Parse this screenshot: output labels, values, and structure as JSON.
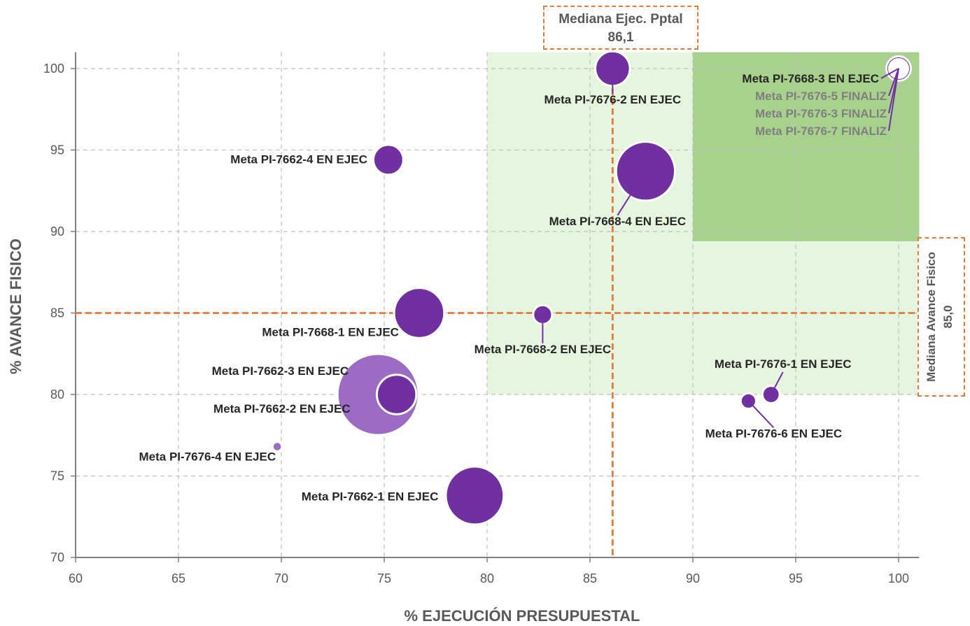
{
  "chart_data": {
    "type": "bubble",
    "xlabel": "% EJECUCIÓN PRESUPUESTAL",
    "ylabel": "% AVANCE FISICO",
    "xlim": [
      60,
      101
    ],
    "ylim": [
      70,
      101
    ],
    "xticks": [
      "60",
      "65",
      "70",
      "75",
      "80",
      "85",
      "90",
      "95",
      "100"
    ],
    "yticks": [
      "70",
      "75",
      "80",
      "85",
      "90",
      "95",
      "100"
    ],
    "grid": true,
    "medians": {
      "x": {
        "value": 86.1,
        "title": "Mediana Ejec. Pptal",
        "value_label": "86,1"
      },
      "y": {
        "value": 85.0,
        "title": "Mediana Avance Fisico",
        "value_label": "85,0"
      }
    },
    "zones": [
      {
        "x": [
          80,
          101
        ],
        "y": [
          80,
          101
        ],
        "color": "#e6f5df"
      },
      {
        "x": [
          90,
          101
        ],
        "y": [
          89.4,
          101
        ],
        "color": "#a9d18e"
      }
    ],
    "points": [
      {
        "label": "Meta PI-7676-2 EN EJEC",
        "x": 86.1,
        "y": 100.0,
        "size": 2.0,
        "color": "#7030a0"
      },
      {
        "label": "Meta PI-7668-3 EN EJEC",
        "x": 100.0,
        "y": 100.0,
        "size": 1.0,
        "color": "#7030a0"
      },
      {
        "label": "Meta PI-7676-5 FINALIZ",
        "x": 100.0,
        "y": 100.0,
        "size": 0.6,
        "color": "#ffffff"
      },
      {
        "label": "Meta PI-7676-3 FINALIZ",
        "x": 100.0,
        "y": 100.0,
        "size": 0.3,
        "color": "#7030a0"
      },
      {
        "label": "Meta PI-7676-7 FINALIZ",
        "x": 100.0,
        "y": 100.0,
        "size": 0.2,
        "color": "#ffffff"
      },
      {
        "label": "Meta PI-7662-4 EN EJEC",
        "x": 75.2,
        "y": 94.4,
        "size": 1.5,
        "color": "#7030a0"
      },
      {
        "label": "Meta PI-7668-4 EN EJEC",
        "x": 87.7,
        "y": 93.7,
        "size": 5.8,
        "color": "#7030a0"
      },
      {
        "label": "Meta PI-7668-1 EN EJEC",
        "x": 76.7,
        "y": 85.0,
        "size": 4.2,
        "color": "#7030a0"
      },
      {
        "label": "Meta PI-7668-2 EN EJEC",
        "x": 82.7,
        "y": 84.9,
        "size": 0.6,
        "color": "#7030a0"
      },
      {
        "label": "Meta PI-7662-3 EN EJEC",
        "x": 74.7,
        "y": 80.0,
        "size": 11.0,
        "color": "#9c6cc4"
      },
      {
        "label": "Meta PI-7662-2 EN EJEC",
        "x": 75.6,
        "y": 80.0,
        "size": 2.6,
        "color": "#7030a0"
      },
      {
        "label": "Meta PI-7676-1 EN EJEC",
        "x": 93.8,
        "y": 80.0,
        "size": 0.5,
        "color": "#7030a0"
      },
      {
        "label": "Meta PI-7676-6 EN EJEC",
        "x": 92.7,
        "y": 79.6,
        "size": 0.4,
        "color": "#7030a0"
      },
      {
        "label": "Meta PI-7676-4 EN EJEC",
        "x": 69.8,
        "y": 76.8,
        "size": 0.15,
        "color": "#9c6cc4"
      },
      {
        "label": "Meta PI-7662-1 EN EJEC",
        "x": 79.4,
        "y": 73.8,
        "size": 5.6,
        "color": "#7030a0"
      }
    ]
  }
}
